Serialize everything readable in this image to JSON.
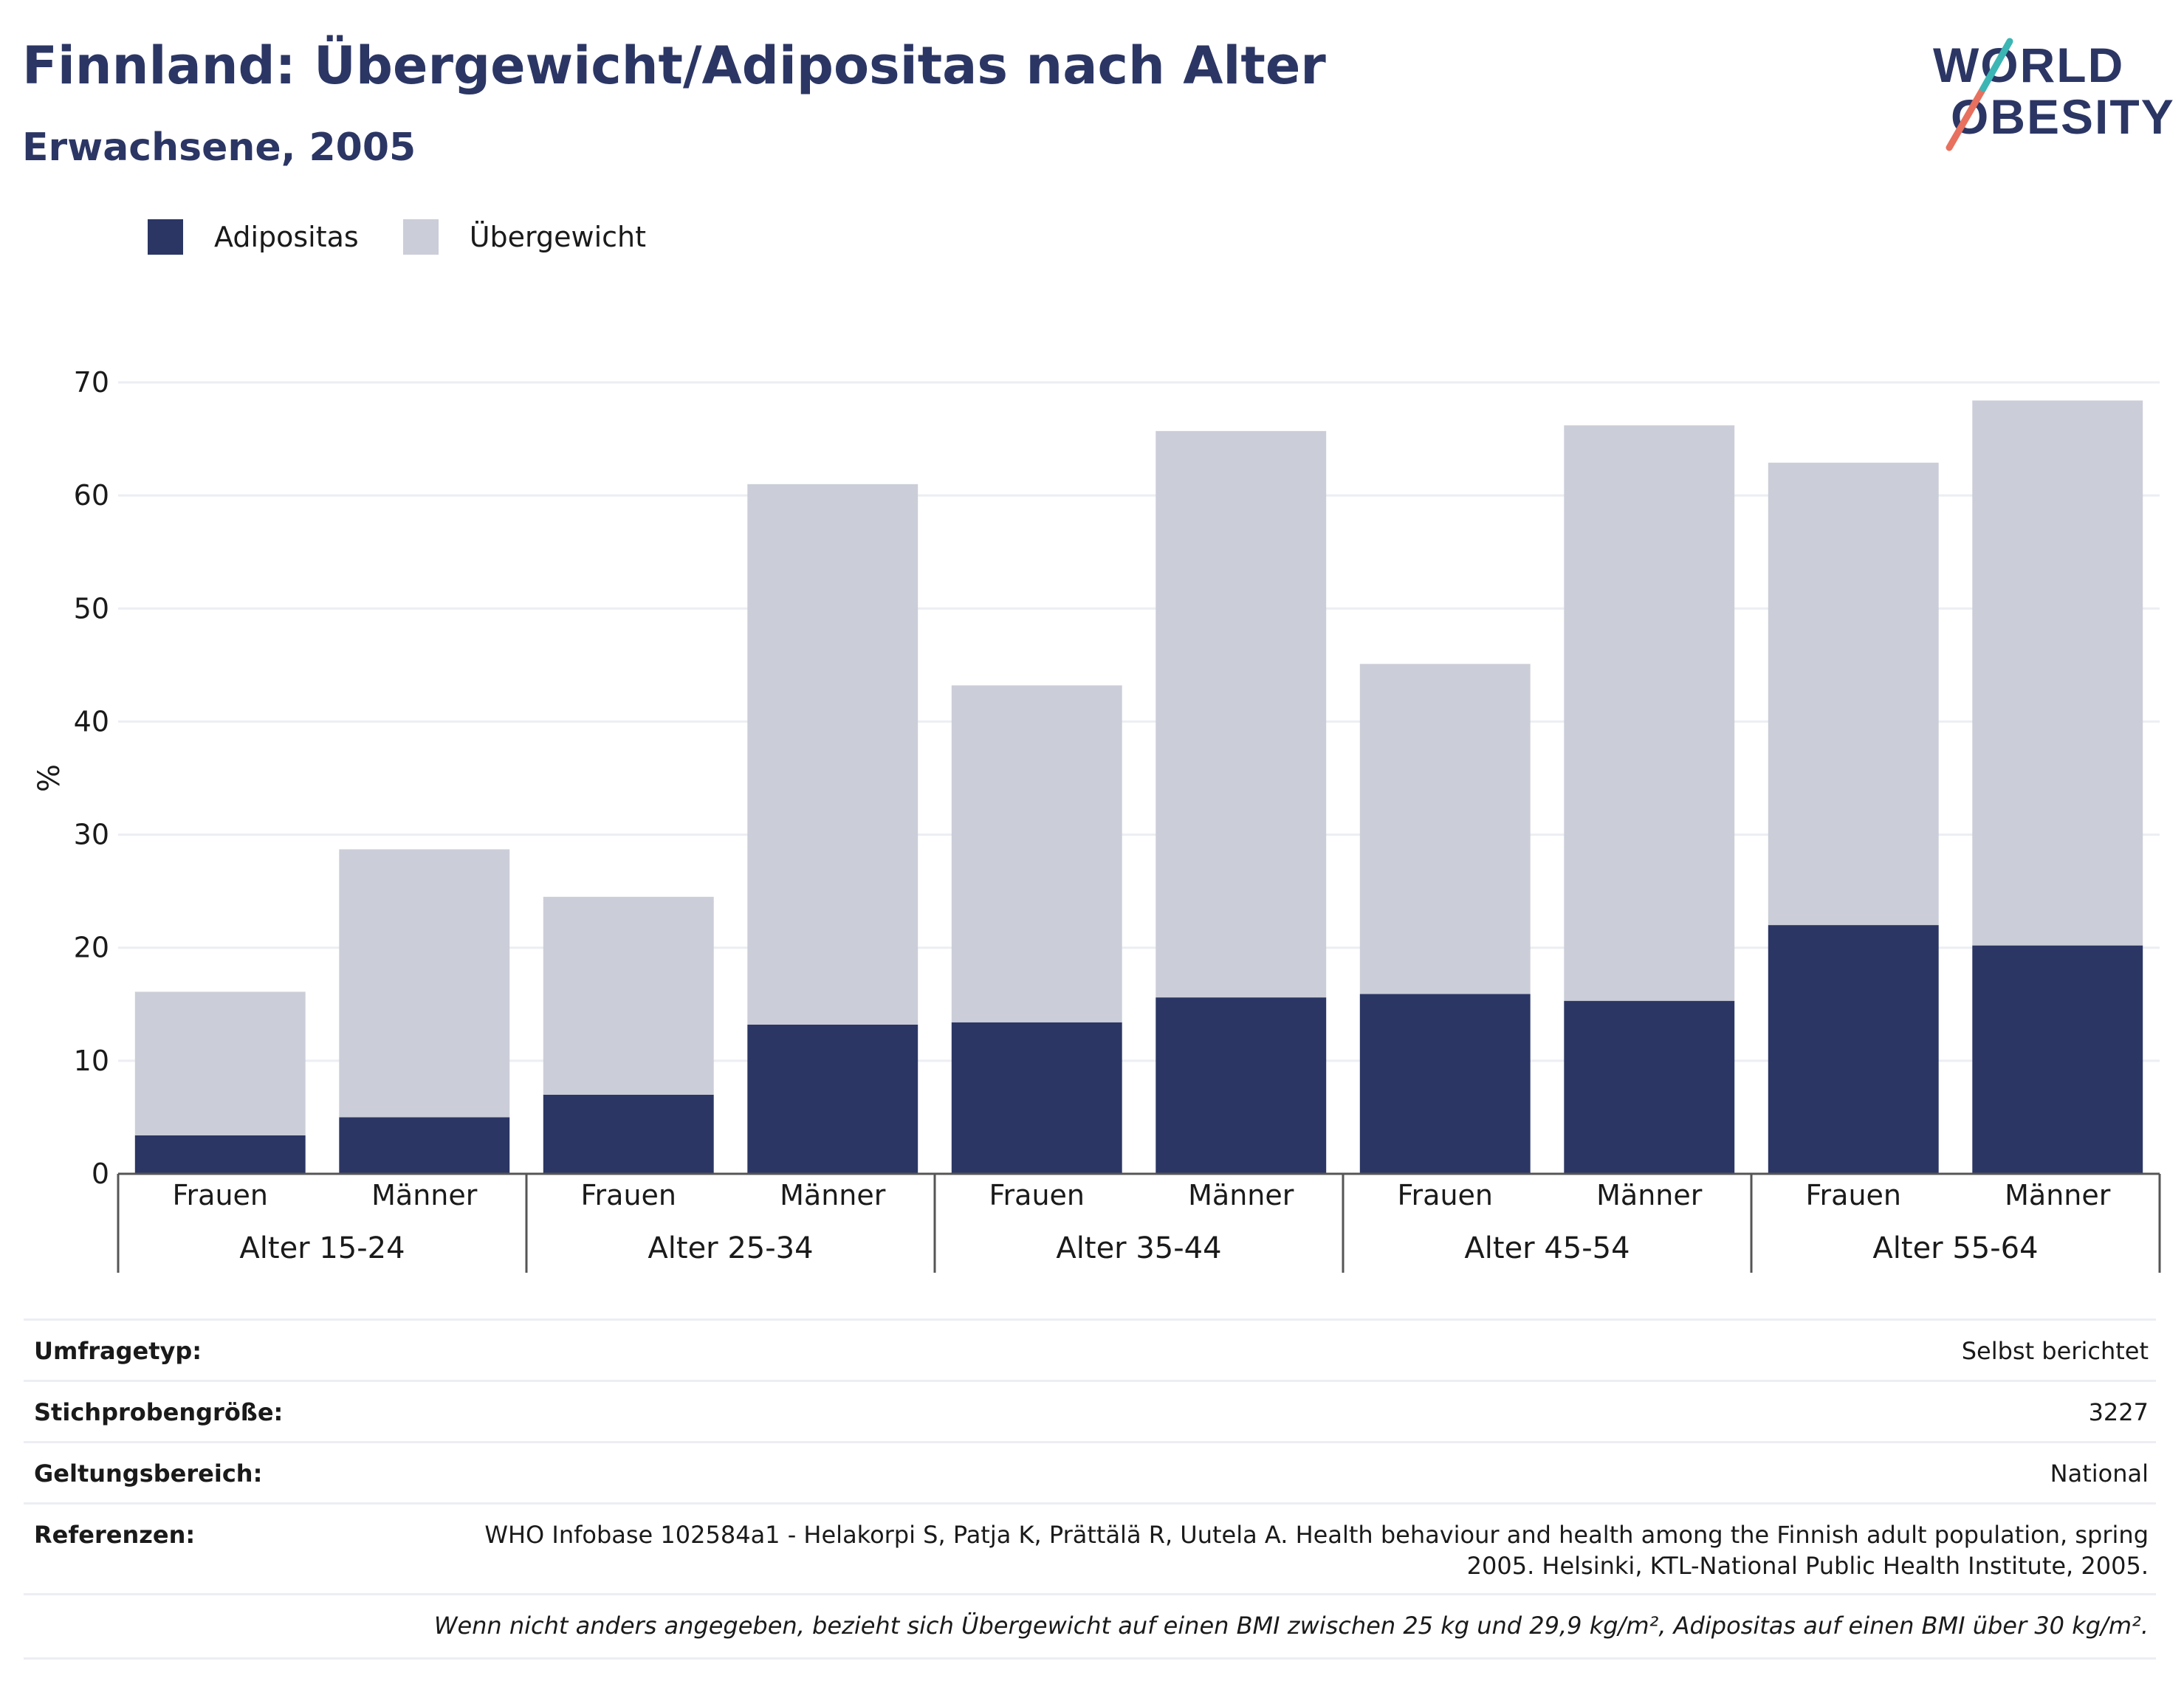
{
  "header": {
    "title": "Finnland: Übergewicht/Adipositas nach Alter",
    "subtitle": "Erwachsene, 2005",
    "logo_line1": "WORLD",
    "logo_line2": "OBESITY"
  },
  "legend": {
    "items": [
      {
        "label": "Adipositas",
        "color": "#2b3664"
      },
      {
        "label": "Übergewicht",
        "color": "#cbcdd8"
      }
    ]
  },
  "chart_data": {
    "type": "bar",
    "stacked": true,
    "ylabel": "%",
    "ylim": [
      0,
      70
    ],
    "yticks": [
      0,
      10,
      20,
      30,
      40,
      50,
      60,
      70
    ],
    "grid": true,
    "legend_position": "top-left",
    "groups": [
      "Alter 15-24",
      "Alter 25-34",
      "Alter 35-44",
      "Alter 45-54",
      "Alter 55-64"
    ],
    "sub_categories": [
      "Frauen",
      "Männer"
    ],
    "categories": [
      "Frauen",
      "Männer",
      "Frauen",
      "Männer",
      "Frauen",
      "Männer",
      "Frauen",
      "Männer",
      "Frauen",
      "Männer"
    ],
    "series": [
      {
        "name": "Adipositas",
        "color": "#2b3664",
        "values": [
          3.4,
          5.0,
          7.0,
          13.2,
          13.4,
          15.6,
          15.9,
          15.3,
          22.0,
          20.2
        ]
      },
      {
        "name": "Übergewicht",
        "color": "#cbcdd8",
        "values": [
          12.7,
          23.7,
          17.5,
          47.8,
          29.8,
          50.1,
          29.2,
          50.9,
          40.9,
          48.2
        ]
      }
    ]
  },
  "info": {
    "survey_type_label": "Umfragetyp:",
    "survey_type_value": "Selbst berichtet",
    "sample_size_label": "Stichprobengröße:",
    "sample_size_value": "3227",
    "scope_label": "Geltungsbereich:",
    "scope_value": "National",
    "references_label": "Referenzen:",
    "references_value": "WHO Infobase 102584a1 - Helakorpi S, Patja K, Prättälä R, Uutela A. Health behaviour and health among the Finnish adult population, spring 2005. Helsinki, KTL-National Public Health Institute, 2005.",
    "note": "Wenn nicht anders angegeben, bezieht sich Übergewicht auf einen BMI zwischen 25 kg und 29,9 kg/m², Adipositas auf einen BMI über 30 kg/m²."
  }
}
